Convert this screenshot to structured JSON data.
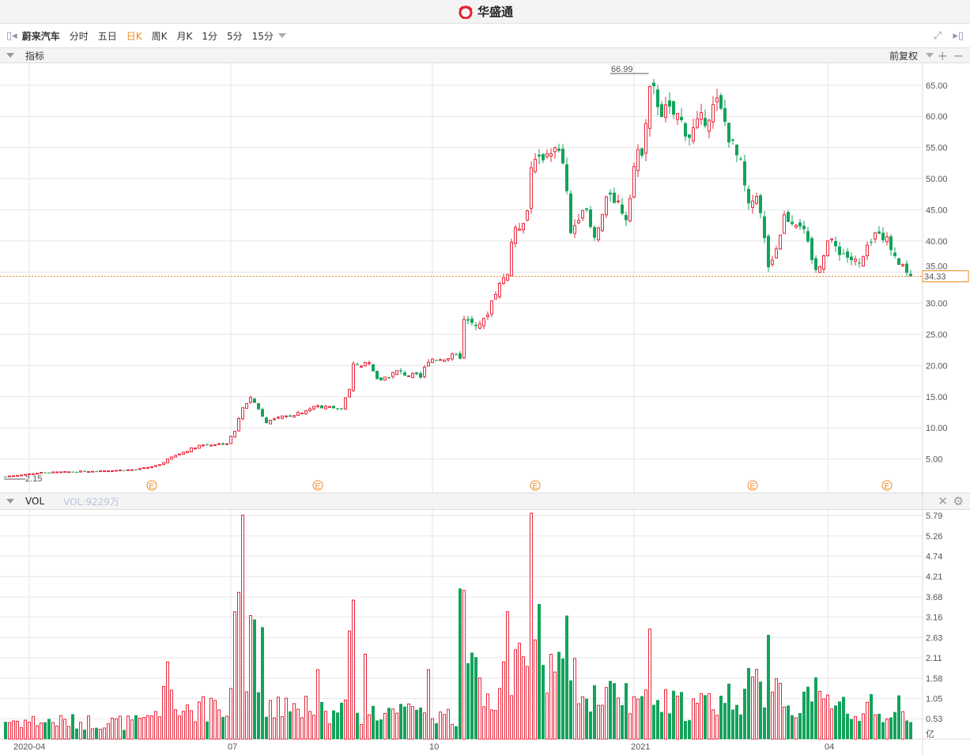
{
  "header": {
    "brand": "华盛通",
    "brand_color": "#e0242f"
  },
  "toolbar": {
    "stock_name": "蔚来汽车",
    "tabs": [
      "分时",
      "五日",
      "日K",
      "周K",
      "月K",
      "1分",
      "5分",
      "15分"
    ],
    "active_tab": "日K"
  },
  "indicator_bar": {
    "label": "指标",
    "adjust": "前复权"
  },
  "vol_bar": {
    "label": "VOL",
    "value": "VOL:9229万"
  },
  "colors": {
    "up": "#e8283c",
    "down": "#13a35b",
    "accent": "#f08a24",
    "grid": "#e6e6ea"
  },
  "chart_data": [
    {
      "type": "candlestick",
      "title": "蔚来汽车 日K",
      "ylim": [
        0,
        69.5
      ],
      "y_ticks": [
        "65.00",
        "60.00",
        "55.00",
        "50.00",
        "45.00",
        "40.00",
        "35.00",
        "30.00",
        "25.00",
        "20.00",
        "15.00",
        "10.00",
        "5.00"
      ],
      "x_ticks": [
        "2020-04",
        "07",
        "10",
        "2021",
        "04"
      ],
      "x_tick_index": [
        6,
        57,
        108,
        159,
        208
      ],
      "earnings_markers_index": [
        37,
        79,
        134,
        189,
        223
      ],
      "earnings_label": "E",
      "max_label": "66.99",
      "min_label": "2.15",
      "last_price": "34.33",
      "close_keypoints": [
        [
          0,
          2.2
        ],
        [
          9,
          2.8
        ],
        [
          19,
          3.0
        ],
        [
          33,
          3.3
        ],
        [
          39,
          4.0
        ],
        [
          41,
          5.0
        ],
        [
          49,
          7.2
        ],
        [
          56,
          7.5
        ],
        [
          58,
          9.5
        ],
        [
          60,
          13
        ],
        [
          62,
          15
        ],
        [
          66,
          11
        ],
        [
          72,
          12
        ],
        [
          79,
          13.5
        ],
        [
          85,
          13
        ],
        [
          87,
          16
        ],
        [
          88,
          20
        ],
        [
          92,
          20
        ],
        [
          94,
          17.5
        ],
        [
          99,
          19
        ],
        [
          105,
          18
        ],
        [
          107,
          21
        ],
        [
          115,
          21.5
        ],
        [
          116,
          27
        ],
        [
          121,
          27
        ],
        [
          124,
          32
        ],
        [
          127,
          35
        ],
        [
          128,
          40
        ],
        [
          132,
          45
        ],
        [
          133,
          52
        ],
        [
          138,
          55
        ],
        [
          141,
          53
        ],
        [
          143,
          41
        ],
        [
          146,
          46
        ],
        [
          149,
          40
        ],
        [
          153,
          48
        ],
        [
          157,
          44
        ],
        [
          159,
          52
        ],
        [
          161,
          55
        ],
        [
          163,
          65
        ],
        [
          166,
          61
        ],
        [
          170,
          60
        ],
        [
          173,
          57
        ],
        [
          180,
          62
        ],
        [
          182,
          59
        ],
        [
          184,
          55
        ],
        [
          186,
          52
        ],
        [
          188,
          45
        ],
        [
          190,
          48
        ],
        [
          192,
          40
        ],
        [
          193,
          36
        ],
        [
          195,
          39
        ],
        [
          197,
          44
        ],
        [
          201,
          43
        ],
        [
          205,
          35
        ],
        [
          208,
          40
        ],
        [
          212,
          38
        ],
        [
          216,
          36
        ],
        [
          221,
          42
        ],
        [
          225,
          38
        ],
        [
          229,
          34.33
        ]
      ],
      "volume": {
        "unit": "亿",
        "ylim": [
          0,
          5.79
        ],
        "y_ticks": [
          "5.79",
          "5.26",
          "4.74",
          "4.21",
          "3.68",
          "3.16",
          "2.63",
          "2.11",
          "1.58",
          "1.05",
          "0.53",
          "亿"
        ],
        "base_keypoints": [
          [
            0,
            0.5
          ],
          [
            35,
            0.45
          ],
          [
            40,
            1.0
          ],
          [
            56,
            0.7
          ],
          [
            58,
            1.8
          ],
          [
            64,
            1.2
          ],
          [
            80,
            0.8
          ],
          [
            100,
            0.7
          ],
          [
            114,
            0.6
          ],
          [
            116,
            1.8
          ],
          [
            125,
            1.0
          ],
          [
            130,
            2.0
          ],
          [
            140,
            1.8
          ],
          [
            150,
            1.2
          ],
          [
            160,
            1.0
          ],
          [
            175,
            0.9
          ],
          [
            190,
            1.4
          ],
          [
            200,
            1.0
          ],
          [
            229,
            0.8
          ]
        ],
        "spikes": [
          [
            41,
            2.0
          ],
          [
            58,
            3.3
          ],
          [
            59,
            3.8
          ],
          [
            60,
            5.8
          ],
          [
            62,
            3.2
          ],
          [
            63,
            3.1
          ],
          [
            65,
            2.9
          ],
          [
            79,
            1.8
          ],
          [
            87,
            2.8
          ],
          [
            88,
            3.6
          ],
          [
            91,
            2.2
          ],
          [
            107,
            1.8
          ],
          [
            115,
            3.9
          ],
          [
            116,
            3.85
          ],
          [
            126,
            2.0
          ],
          [
            127,
            3.3
          ],
          [
            133,
            5.85
          ],
          [
            135,
            3.5
          ],
          [
            142,
            3.2
          ],
          [
            163,
            2.85
          ],
          [
            193,
            2.7
          ],
          [
            205,
            1.6
          ]
        ]
      }
    }
  ]
}
